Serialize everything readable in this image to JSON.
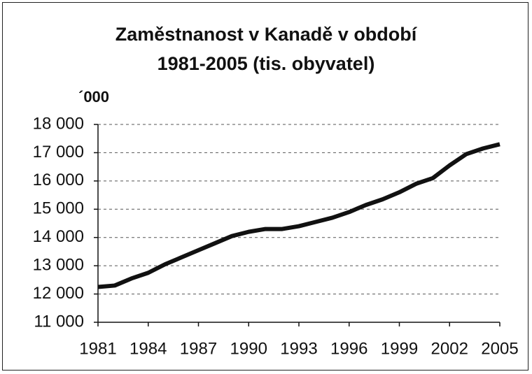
{
  "chart_data": {
    "type": "line",
    "title": "Zaměstnanost v Kanadě v období 1981-2005 (tis. obyvatel)",
    "y_label": "´000",
    "x": [
      1981,
      1982,
      1983,
      1984,
      1985,
      1986,
      1987,
      1988,
      1989,
      1990,
      1991,
      1992,
      1993,
      1994,
      1995,
      1996,
      1997,
      1998,
      1999,
      2000,
      2001,
      2002,
      2003,
      2004,
      2005
    ],
    "series": [
      {
        "name": "Zaměstnanost",
        "color": "#111111",
        "values": [
          12250,
          12300,
          12550,
          12750,
          13050,
          13300,
          13550,
          13800,
          14050,
          14200,
          14300,
          14300,
          14400,
          14550,
          14700,
          14900,
          15150,
          15350,
          15600,
          15900,
          16100,
          16550,
          16950,
          17150,
          17300
        ]
      }
    ],
    "xlim": [
      1981,
      2005
    ],
    "xticks": [
      1981,
      1984,
      1987,
      1990,
      1993,
      1996,
      1999,
      2002,
      2005
    ],
    "ylim": [
      11000,
      18000
    ],
    "yticks": [
      {
        "value": 11000,
        "label": "11 000"
      },
      {
        "value": 12000,
        "label": "12 000"
      },
      {
        "value": 13000,
        "label": "13 000"
      },
      {
        "value": 14000,
        "label": "14 000"
      },
      {
        "value": 15000,
        "label": "15 000"
      },
      {
        "value": 16000,
        "label": "16 000"
      },
      {
        "value": 17000,
        "label": "17 000"
      },
      {
        "value": 18000,
        "label": "18 000"
      }
    ],
    "grid": true
  }
}
